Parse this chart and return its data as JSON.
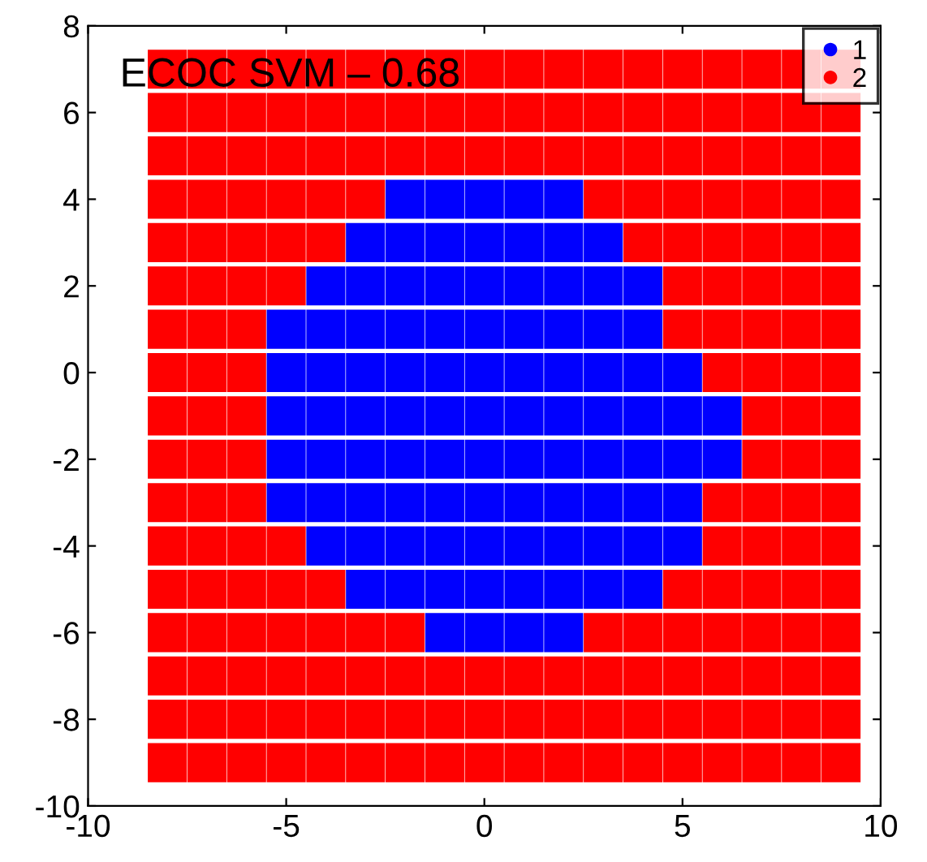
{
  "chart_data": {
    "type": "scatter",
    "annotations": [
      "ECOC SVM – 0.68"
    ],
    "xlim": [
      -10,
      10
    ],
    "xticks": [
      -10,
      -5,
      0,
      5,
      10
    ],
    "ylim": [
      -10,
      8
    ],
    "yticks": [
      -10,
      -8,
      -6,
      -4,
      -2,
      0,
      2,
      4,
      6,
      8
    ],
    "grid": false,
    "legend": "top right",
    "marker": "square",
    "series": [
      {
        "name": "1",
        "color": "#0000ff",
        "x": [
          -2,
          -1,
          0,
          1,
          2,
          -3,
          -2,
          -1,
          0,
          1,
          2,
          3,
          -4,
          -3,
          -2,
          -1,
          0,
          1,
          2,
          3,
          4,
          -5,
          -4,
          -3,
          -2,
          -1,
          0,
          1,
          2,
          3,
          4,
          -5,
          -4,
          -3,
          -2,
          -1,
          0,
          1,
          2,
          3,
          4,
          5,
          -5,
          -4,
          -3,
          -2,
          -1,
          0,
          1,
          2,
          3,
          4,
          5,
          6,
          -5,
          -4,
          -3,
          -2,
          -1,
          0,
          1,
          2,
          3,
          4,
          5,
          6,
          -5,
          -4,
          -3,
          -2,
          -1,
          0,
          1,
          2,
          3,
          4,
          5,
          -4,
          -3,
          -2,
          -1,
          0,
          1,
          2,
          3,
          4,
          5,
          -3,
          -2,
          -1,
          0,
          1,
          2,
          3,
          4,
          -1,
          0,
          1,
          2
        ],
        "values": [
          4,
          4,
          4,
          4,
          4,
          3,
          3,
          3,
          3,
          3,
          3,
          3,
          2,
          2,
          2,
          2,
          2,
          2,
          2,
          2,
          2,
          1,
          1,
          1,
          1,
          1,
          1,
          1,
          1,
          1,
          1,
          0,
          0,
          0,
          0,
          0,
          0,
          0,
          0,
          0,
          0,
          0,
          -1,
          -1,
          -1,
          -1,
          -1,
          -1,
          -1,
          -1,
          -1,
          -1,
          -1,
          -1,
          -2,
          -2,
          -2,
          -2,
          -2,
          -2,
          -2,
          -2,
          -2,
          -2,
          -2,
          -2,
          -3,
          -3,
          -3,
          -3,
          -3,
          -3,
          -3,
          -3,
          -3,
          -3,
          -3,
          -4,
          -4,
          -4,
          -4,
          -4,
          -4,
          -4,
          -4,
          -4,
          -4,
          -5,
          -5,
          -5,
          -5,
          -5,
          -5,
          -5,
          -5,
          -6,
          -6,
          -6,
          -6
        ]
      },
      {
        "name": "2",
        "color": "#ff0000",
        "x": [
          -8,
          -7,
          -6,
          -5,
          -4,
          -3,
          -2,
          -1,
          0,
          1,
          2,
          3,
          4,
          5,
          6,
          7,
          8,
          9,
          -8,
          -7,
          -6,
          -5,
          -4,
          -3,
          -2,
          -1,
          0,
          1,
          2,
          3,
          4,
          5,
          6,
          7,
          8,
          9,
          -8,
          -7,
          -6,
          -5,
          -4,
          -3,
          -2,
          -1,
          0,
          1,
          2,
          3,
          4,
          5,
          6,
          7,
          8,
          9,
          -8,
          -7,
          -6,
          -5,
          -4,
          -3,
          3,
          4,
          5,
          6,
          7,
          8,
          9,
          -8,
          -7,
          -6,
          -5,
          -4,
          4,
          5,
          6,
          7,
          8,
          9,
          -8,
          -7,
          -6,
          -5,
          5,
          6,
          7,
          8,
          9,
          -8,
          -7,
          -6,
          5,
          6,
          7,
          8,
          9,
          -8,
          -7,
          -6,
          6,
          7,
          8,
          9,
          -8,
          -7,
          -6,
          7,
          8,
          9,
          -8,
          -7,
          -6,
          7,
          8,
          9,
          -8,
          -7,
          -6,
          6,
          7,
          8,
          9,
          -8,
          -7,
          -6,
          -5,
          6,
          7,
          8,
          9,
          -8,
          -7,
          -6,
          -5,
          -4,
          5,
          6,
          7,
          8,
          9,
          -8,
          -7,
          -6,
          -5,
          -4,
          -3,
          -2,
          3,
          4,
          5,
          6,
          7,
          8,
          9,
          -8,
          -7,
          -6,
          -5,
          -4,
          -3,
          -2,
          -1,
          0,
          1,
          2,
          3,
          4,
          5,
          6,
          7,
          8,
          9,
          -8,
          -7,
          -6,
          -5,
          -4,
          -3,
          -2,
          -1,
          0,
          1,
          2,
          3,
          4,
          5,
          6,
          7,
          8,
          9,
          -8,
          -7,
          -6,
          -5,
          -4,
          -3,
          -2,
          -1,
          0,
          1,
          2,
          3,
          4,
          5,
          6,
          7,
          8,
          9
        ],
        "values": [
          7,
          7,
          7,
          7,
          7,
          7,
          7,
          7,
          7,
          7,
          7,
          7,
          7,
          7,
          7,
          7,
          7,
          7,
          6,
          6,
          6,
          6,
          6,
          6,
          6,
          6,
          6,
          6,
          6,
          6,
          6,
          6,
          6,
          6,
          6,
          6,
          5,
          5,
          5,
          5,
          5,
          5,
          5,
          5,
          5,
          5,
          5,
          5,
          5,
          5,
          5,
          5,
          5,
          5,
          4,
          4,
          4,
          4,
          4,
          4,
          4,
          4,
          4,
          4,
          4,
          4,
          4,
          3,
          3,
          3,
          3,
          3,
          3,
          3,
          3,
          3,
          3,
          3,
          2,
          2,
          2,
          2,
          2,
          2,
          2,
          2,
          2,
          1,
          1,
          1,
          1,
          1,
          1,
          1,
          1,
          0,
          0,
          0,
          0,
          0,
          0,
          0,
          -1,
          -1,
          -1,
          -1,
          -1,
          -1,
          -2,
          -2,
          -2,
          -2,
          -2,
          -2,
          -3,
          -3,
          -3,
          -3,
          -3,
          -3,
          -3,
          -4,
          -4,
          -4,
          -4,
          -4,
          -4,
          -4,
          -4,
          -5,
          -5,
          -5,
          -5,
          -5,
          -5,
          -5,
          -5,
          -5,
          -5,
          -6,
          -6,
          -6,
          -6,
          -6,
          -6,
          -6,
          -6,
          -6,
          -6,
          -6,
          -6,
          -6,
          -6,
          -7,
          -7,
          -7,
          -7,
          -7,
          -7,
          -7,
          -7,
          -7,
          -7,
          -7,
          -7,
          -7,
          -7,
          -7,
          -7,
          -7,
          -7,
          -8,
          -8,
          -8,
          -8,
          -8,
          -8,
          -8,
          -8,
          -8,
          -8,
          -8,
          -8,
          -8,
          -8,
          -8,
          -8,
          -8,
          -8,
          -9,
          -9,
          -9,
          -9,
          -9,
          -9,
          -9,
          -9,
          -9,
          -9,
          -9,
          -9,
          -9,
          -9,
          -9,
          -9,
          -9,
          -9
        ]
      }
    ]
  }
}
